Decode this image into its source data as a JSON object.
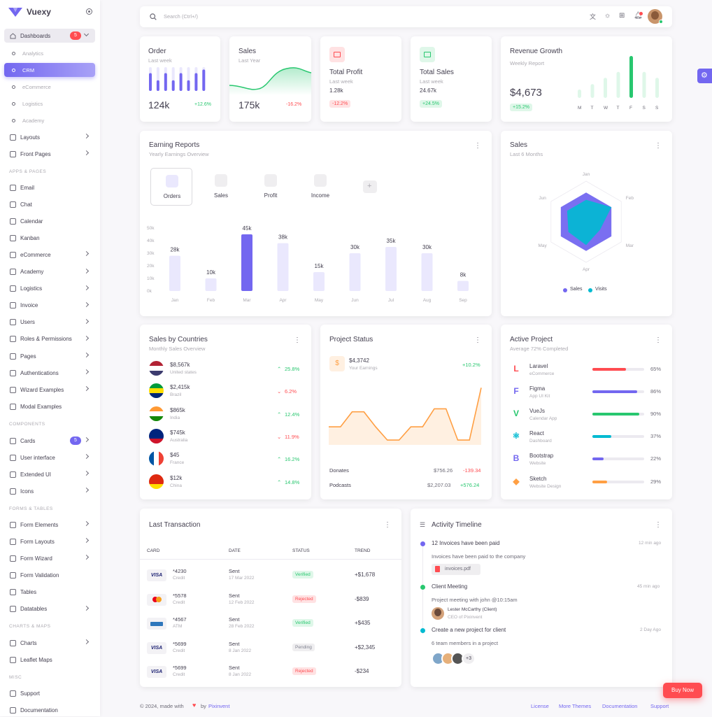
{
  "app": {
    "name": "Vuexy",
    "accent": "#7367f0"
  },
  "sidebar": {
    "dashboards": {
      "label": "Dashboards",
      "badge": "5"
    },
    "subitems": [
      {
        "label": "Analytics"
      },
      {
        "label": "CRM"
      },
      {
        "label": "eCommerce"
      },
      {
        "label": "Logistics"
      },
      {
        "label": "Academy"
      }
    ],
    "items_top": [
      {
        "label": "Layouts"
      },
      {
        "label": "Front Pages"
      }
    ],
    "sections": {
      "apps": "APPS & PAGES",
      "components": "COMPONENTS",
      "forms": "FORMS & TABLES",
      "charts": "CHARTS & MAPS",
      "misc": "MISC"
    },
    "apps": [
      {
        "label": "Email"
      },
      {
        "label": "Chat"
      },
      {
        "label": "Calendar"
      },
      {
        "label": "Kanban"
      },
      {
        "label": "eCommerce"
      },
      {
        "label": "Academy"
      },
      {
        "label": "Logistics"
      },
      {
        "label": "Invoice"
      },
      {
        "label": "Users"
      },
      {
        "label": "Roles & Permissions"
      },
      {
        "label": "Pages"
      },
      {
        "label": "Authentications"
      },
      {
        "label": "Wizard Examples"
      },
      {
        "label": "Modal Examples"
      }
    ],
    "components": [
      {
        "label": "Cards",
        "badge": "5"
      },
      {
        "label": "User interface"
      },
      {
        "label": "Extended UI"
      },
      {
        "label": "Icons"
      }
    ],
    "forms": [
      {
        "label": "Form Elements"
      },
      {
        "label": "Form Layouts"
      },
      {
        "label": "Form Wizard"
      },
      {
        "label": "Form Validation"
      },
      {
        "label": "Tables"
      },
      {
        "label": "Datatables"
      }
    ],
    "charts": [
      {
        "label": "Charts"
      },
      {
        "label": "Leaflet Maps"
      }
    ],
    "misc": [
      {
        "label": "Support"
      },
      {
        "label": "Documentation"
      }
    ]
  },
  "topbar": {
    "search_placeholder": "Search (Ctrl+/)"
  },
  "order": {
    "title": "Order",
    "sub": "Last week",
    "value": "124k",
    "change": "+12.6%"
  },
  "sales_small": {
    "title": "Sales",
    "sub": "Last Year",
    "value": "175k",
    "change": "-16.2%"
  },
  "total_profit": {
    "title": "Total Profit",
    "sub": "Last week",
    "value": "1.28k",
    "change": "-12.2%"
  },
  "total_sales": {
    "title": "Total Sales",
    "sub": "Last week",
    "value": "24.67k",
    "change": "+24.5%"
  },
  "revenue": {
    "title": "Revenue Growth",
    "sub": "Weekly Report",
    "value": "$4,673",
    "change": "+15.2%",
    "days": [
      "M",
      "T",
      "W",
      "T",
      "F",
      "S",
      "S"
    ]
  },
  "earning": {
    "title": "Earning Reports",
    "sub": "Yearly Earnings Overview",
    "tabs": [
      "Orders",
      "Sales",
      "Profit",
      "Income"
    ]
  },
  "sales_radar": {
    "title": "Sales",
    "sub": "Last 6 Months"
  },
  "countries": {
    "title": "Sales by Countries",
    "sub": "Monthly Sales Overview",
    "rows": [
      {
        "amount": "$8,567k",
        "country": "United states",
        "change": "25.8%",
        "up": true
      },
      {
        "amount": "$2,415k",
        "country": "Brazil",
        "change": "6.2%",
        "up": false
      },
      {
        "amount": "$865k",
        "country": "India",
        "change": "12.4%",
        "up": true
      },
      {
        "amount": "$745k",
        "country": "Australia",
        "change": "11.9%",
        "up": false
      },
      {
        "amount": "$45",
        "country": "France",
        "change": "16.2%",
        "up": true
      },
      {
        "amount": "$12k",
        "country": "China",
        "change": "14.8%",
        "up": true
      }
    ]
  },
  "project_status": {
    "title": "Project Status",
    "earn_value": "$4,3742",
    "earn_label": "Your Earnings",
    "earn_change": "+10.2%",
    "rows": [
      {
        "label": "Donates",
        "value": "$756.26",
        "change": "-139.34"
      },
      {
        "label": "Podcasts",
        "value": "$2,207.03",
        "change": "+576.24"
      }
    ]
  },
  "active_project": {
    "title": "Active Project",
    "sub": "Average 72% Completed",
    "rows": [
      {
        "name": "Laravel",
        "sub": "eCommerce",
        "pct": "65%",
        "p": 0.65,
        "color": "#ff4c51"
      },
      {
        "name": "Figma",
        "sub": "App UI Kit",
        "pct": "86%",
        "p": 0.86,
        "color": "#7367f0"
      },
      {
        "name": "VueJs",
        "sub": "Calendar App",
        "pct": "90%",
        "p": 0.9,
        "color": "#28c76f"
      },
      {
        "name": "React",
        "sub": "Dashboard",
        "pct": "37%",
        "p": 0.37,
        "color": "#00bad1"
      },
      {
        "name": "Bootstrap",
        "sub": "Website",
        "pct": "22%",
        "p": 0.22,
        "color": "#7367f0"
      },
      {
        "name": "Sketch",
        "sub": "Website Design",
        "pct": "29%",
        "p": 0.29,
        "color": "#ff9f43"
      }
    ]
  },
  "transactions": {
    "title": "Last Transaction",
    "headers": [
      "CARD",
      "DATE",
      "STATUS",
      "TREND"
    ],
    "rows": [
      {
        "brand": "VISA",
        "num": "*4230",
        "type": "Credit",
        "status_a": "Sent",
        "date": "17 Mar 2022",
        "status": "Verified",
        "trend": "+$1,678"
      },
      {
        "brand": "MC",
        "num": "*5578",
        "type": "Credit",
        "status_a": "Sent",
        "date": "12 Feb 2022",
        "status": "Rejected",
        "trend": "-$839"
      },
      {
        "brand": "AMEX",
        "num": "*4567",
        "type": "ATM",
        "status_a": "Sent",
        "date": "28 Feb 2022",
        "status": "Verified",
        "trend": "+$435"
      },
      {
        "brand": "VISA",
        "num": "*5699",
        "type": "Credit",
        "status_a": "Sent",
        "date": "8 Jan 2022",
        "status": "Pending",
        "trend": "+$2,345"
      },
      {
        "brand": "VISA",
        "num": "*5699",
        "type": "Credit",
        "status_a": "Sent",
        "date": "8 Jan 2022",
        "status": "Rejected",
        "trend": "-$234"
      }
    ]
  },
  "timeline": {
    "title": "Activity Timeline",
    "items": [
      {
        "title": "12 Invoices have been paid",
        "time": "12 min ago",
        "desc": "Invoices have been paid to the company",
        "file": "invoices.pdf",
        "color": "#7367f0"
      },
      {
        "title": "Client Meeting",
        "time": "45 min ago",
        "desc": "Project meeting with john @10:15am",
        "person": "Lester McCarthy (Client)",
        "role": "CEO of Pixinvent",
        "color": "#28c76f"
      },
      {
        "title": "Create a new project for client",
        "time": "2 Day Ago",
        "desc": "6 team members in a project",
        "more": "+3",
        "color": "#00bad1"
      }
    ]
  },
  "footer": {
    "copy": "© 2024, made with",
    "by": "by",
    "brand": "Pixinvent",
    "links": [
      "License",
      "More Themes",
      "Documentation",
      "Support"
    ]
  },
  "buy_now": "Buy Now",
  "chart_data": [
    {
      "type": "bar",
      "title": "Earning Reports",
      "categories": [
        "Jan",
        "Feb",
        "Mar",
        "Apr",
        "May",
        "Jun",
        "Jul",
        "Aug",
        "Sep"
      ],
      "values": [
        28,
        10,
        45,
        38,
        15,
        30,
        35,
        30,
        8
      ],
      "data_labels": [
        "28k",
        "10k",
        "45k",
        "38k",
        "15k",
        "30k",
        "35k",
        "30k",
        "8k"
      ],
      "ylim": [
        0,
        50
      ],
      "yticks": [
        "0k",
        "10k",
        "20k",
        "30k",
        "40k",
        "50k"
      ],
      "highlight": 2
    },
    {
      "type": "bar",
      "title": "Revenue Growth",
      "categories": [
        "M",
        "T",
        "W",
        "T",
        "F",
        "S",
        "S"
      ],
      "values": [
        0.2,
        0.33,
        0.48,
        0.62,
        1.0,
        0.62,
        0.48
      ],
      "highlight": 4
    },
    {
      "type": "radar",
      "title": "Sales",
      "categories": [
        "Jan",
        "Feb",
        "Mar",
        "Apr",
        "May",
        "Jun"
      ],
      "series": [
        {
          "name": "Sales",
          "values": [
            1,
            1,
            1,
            1,
            1,
            1
          ]
        },
        {
          "name": "Visits",
          "values": [
            0.75,
            1.0,
            0.55,
            0.8,
            0.7,
            0.75
          ]
        }
      ]
    },
    {
      "type": "bar",
      "title": "Order",
      "values": [
        0.75,
        0.45,
        0.75,
        0.45,
        0.75,
        0.45,
        0.75,
        0.9
      ]
    },
    {
      "type": "area",
      "title": "Project Status",
      "values": [
        0.3,
        0.3,
        0.55,
        0.55,
        0.3,
        0.08,
        0.08,
        0.3,
        0.3,
        0.6,
        0.6,
        0.08,
        0.08,
        0.95
      ]
    }
  ]
}
